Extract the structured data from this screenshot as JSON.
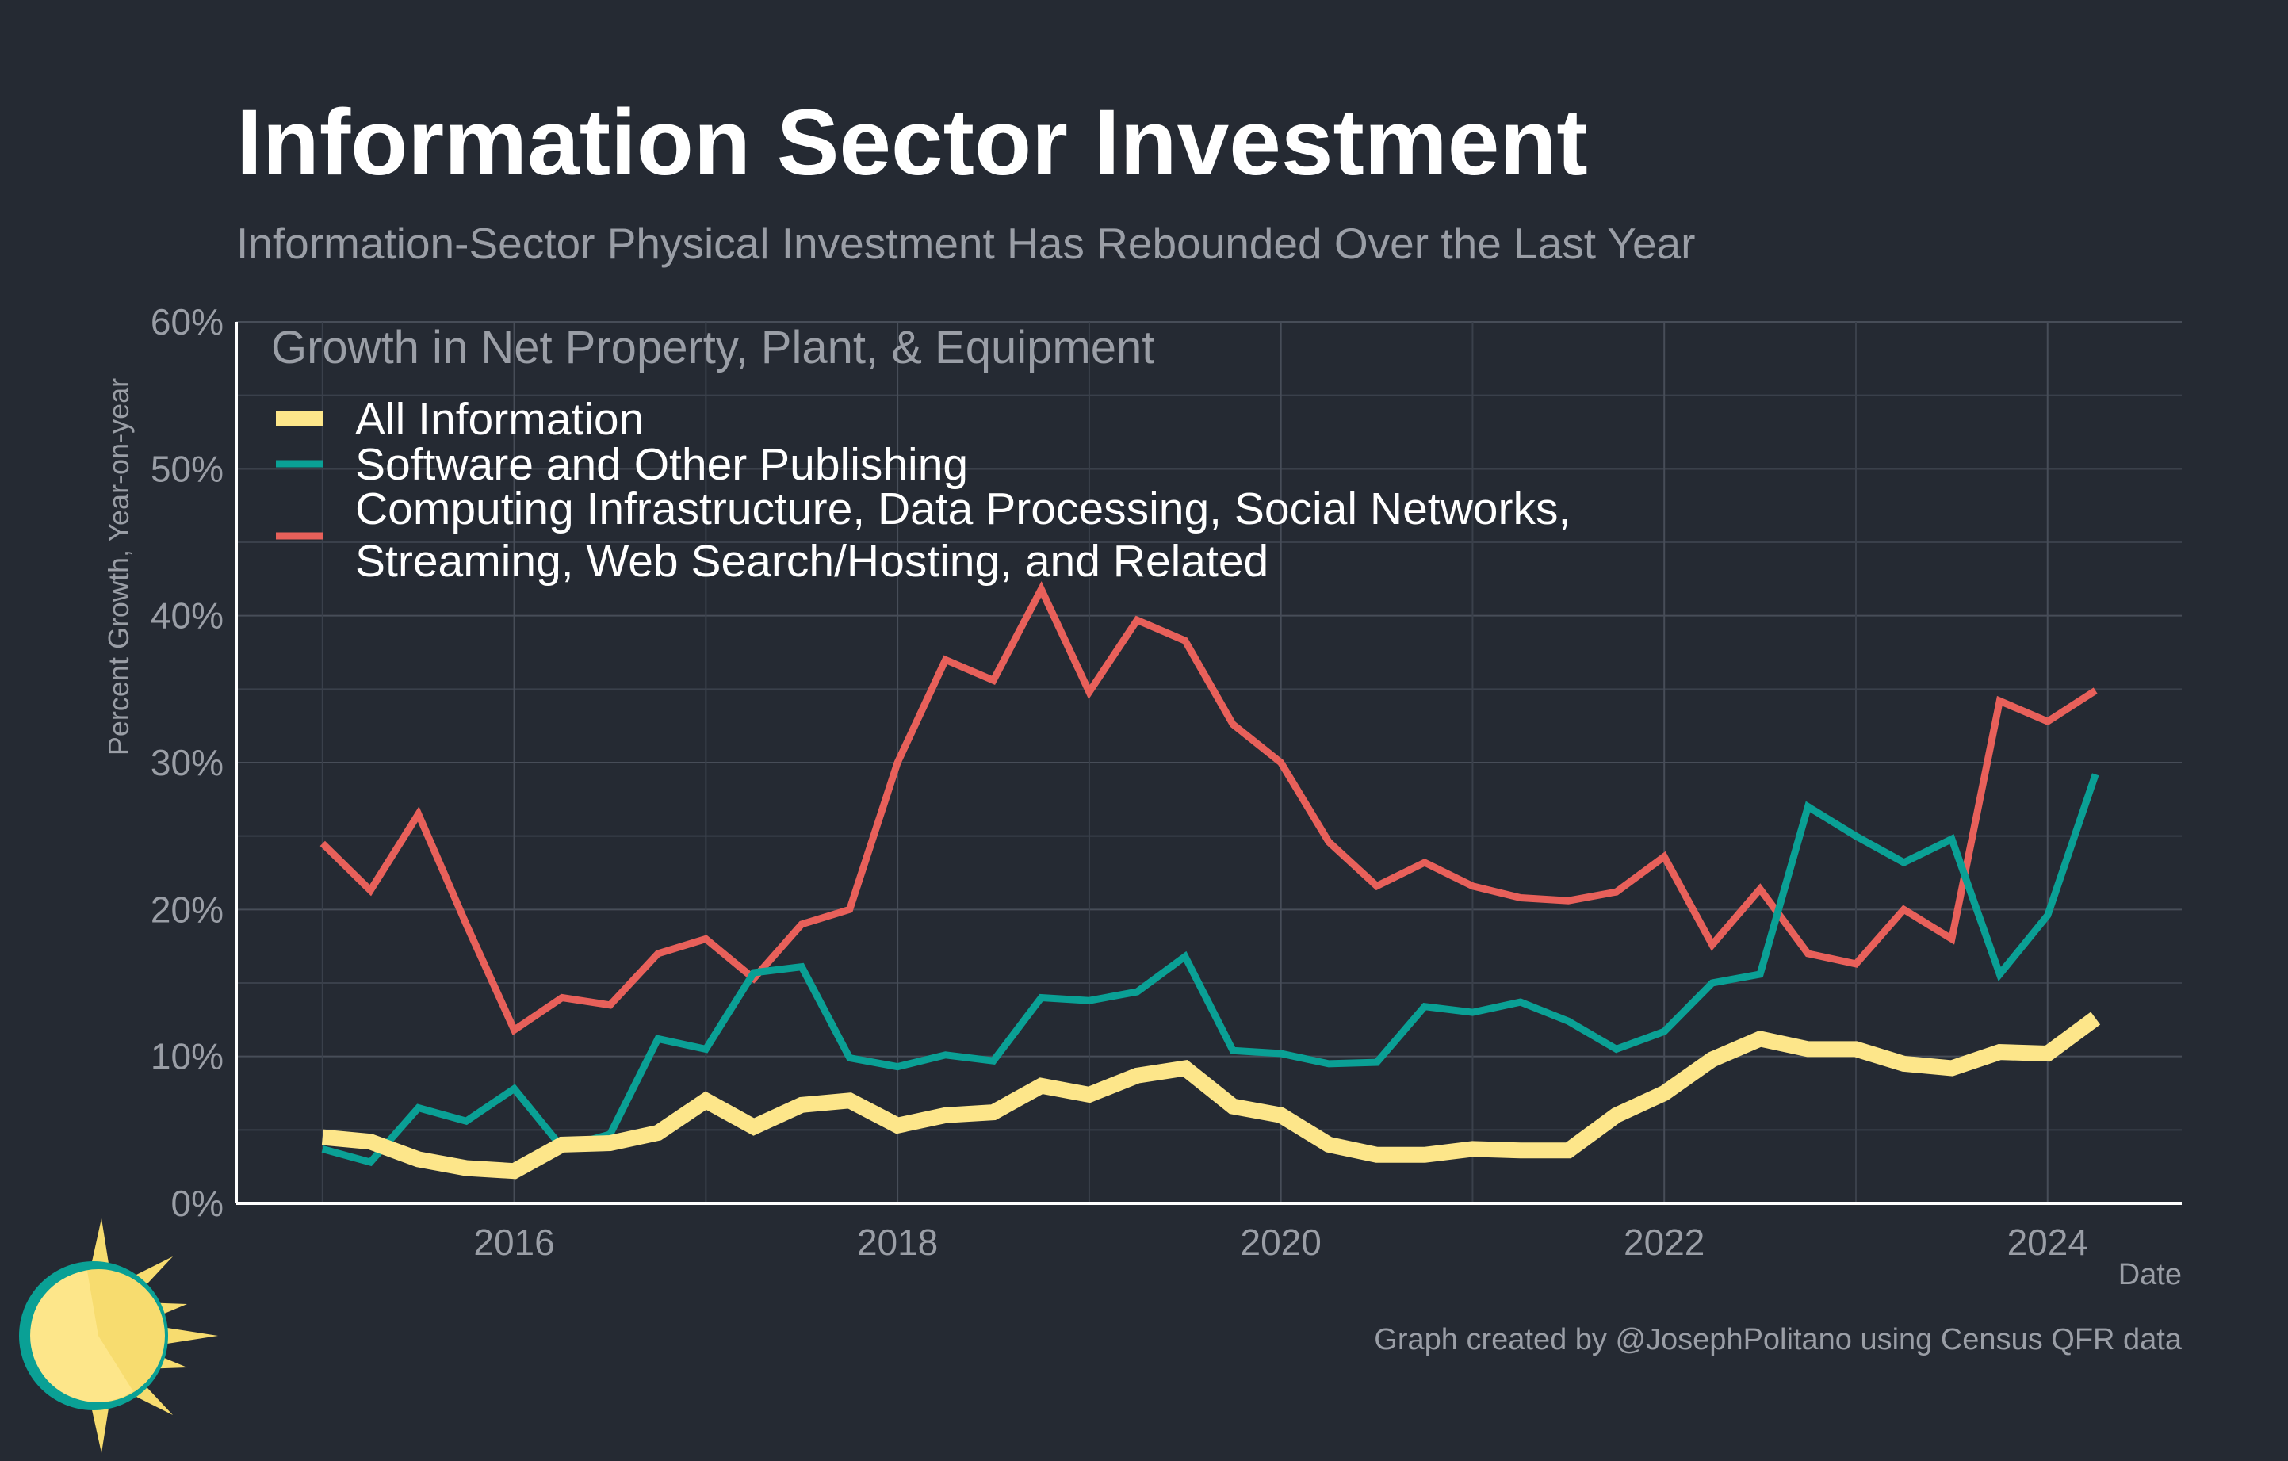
{
  "chart_data": {
    "type": "line",
    "title": "Information Sector Investment",
    "subtitle": "Information-Sector Physical Investment Has Rebounded Over the Last Year",
    "xlabel": "Date",
    "ylabel": "Percent Growth, Year-on-year",
    "legend_title": "Growth in Net Property, Plant, & Equipment",
    "legend_position": "top-left",
    "caption": "Graph created by @JosephPolitano using Census QFR data",
    "xlim": [
      2014.55,
      2024.7
    ],
    "ylim": [
      0,
      60
    ],
    "grid": true,
    "x_ticks": [
      2016,
      2018,
      2020,
      2022,
      2024
    ],
    "x_tick_labels": [
      "2016",
      "2018",
      "2020",
      "2022",
      "2024"
    ],
    "y_ticks": [
      0,
      10,
      20,
      30,
      40,
      50,
      60
    ],
    "y_tick_labels": [
      "0%",
      "10%",
      "20%",
      "30%",
      "40%",
      "50%",
      "60%"
    ],
    "x": [
      2015.0,
      2015.25,
      2015.5,
      2015.75,
      2016.0,
      2016.25,
      2016.5,
      2016.75,
      2017.0,
      2017.25,
      2017.5,
      2017.75,
      2018.0,
      2018.25,
      2018.5,
      2018.75,
      2019.0,
      2019.25,
      2019.5,
      2019.75,
      2020.0,
      2020.25,
      2020.5,
      2020.75,
      2021.0,
      2021.25,
      2021.5,
      2021.75,
      2022.0,
      2022.25,
      2022.5,
      2022.75,
      2023.0,
      2023.25,
      2023.5,
      2023.75,
      2024.0,
      2024.25
    ],
    "series": [
      {
        "name": "Computing Infrastructure, Data Processing, Social Networks, Streaming, Web Search/Hosting, and Related",
        "color": "#e8605a",
        "values": [
          24.5,
          21.3,
          26.5,
          19.0,
          11.8,
          14.0,
          13.5,
          17.0,
          18.0,
          15.3,
          19.0,
          20.0,
          30.0,
          37.0,
          35.6,
          41.8,
          34.8,
          39.7,
          38.3,
          32.6,
          30.0,
          24.6,
          21.6,
          23.2,
          21.6,
          20.8,
          20.6,
          21.2,
          23.6,
          17.6,
          21.4,
          17.0,
          16.3,
          20.0,
          18.0,
          34.2,
          32.8,
          34.9
        ]
      },
      {
        "name": "Software and Other Publishing",
        "color": "#0aa095",
        "values": [
          3.7,
          2.8,
          6.5,
          5.6,
          7.8,
          3.8,
          4.7,
          11.2,
          10.5,
          15.7,
          16.1,
          9.9,
          9.3,
          10.1,
          9.7,
          14.0,
          13.8,
          14.4,
          16.8,
          10.4,
          10.2,
          9.5,
          9.6,
          13.4,
          13.0,
          13.7,
          12.4,
          10.5,
          11.7,
          15.0,
          15.6,
          27.0,
          25.0,
          23.2,
          24.8,
          15.6,
          19.6,
          29.2
        ]
      },
      {
        "name": "All Information",
        "color": "#fde68a",
        "values": [
          4.5,
          4.2,
          3.0,
          2.4,
          2.2,
          4.0,
          4.1,
          4.8,
          7.0,
          5.2,
          6.7,
          7.0,
          5.3,
          6.0,
          6.2,
          8.0,
          7.4,
          8.7,
          9.2,
          6.6,
          6.0,
          4.0,
          3.3,
          3.3,
          3.7,
          3.6,
          3.6,
          6.0,
          7.5,
          9.8,
          11.2,
          10.5,
          10.5,
          9.5,
          9.2,
          10.3,
          10.2,
          12.6
        ]
      }
    ]
  }
}
